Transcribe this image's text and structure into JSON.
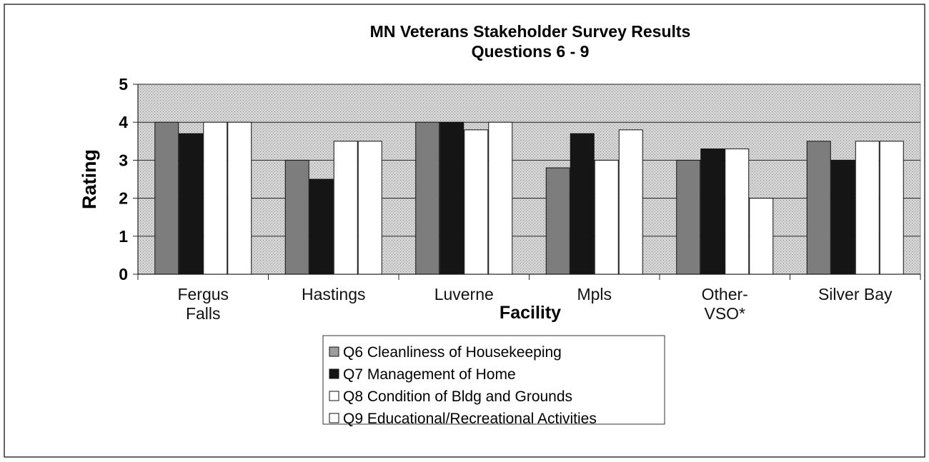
{
  "chart_data": {
    "type": "bar",
    "title": "MN Veterans Stakeholder Survey Results",
    "subtitle": "Questions 6 - 9",
    "x_label": "Facility",
    "y_label": "Rating",
    "categories": [
      "Fergus Falls",
      "Hastings",
      "Luverne",
      "Mpls",
      "Other-VSO*",
      "Silver Bay"
    ],
    "series": [
      {
        "name": "Q6 Cleanliness of Housekeeping",
        "color": "#7d7d7d",
        "values": [
          4.0,
          3.0,
          4.0,
          2.8,
          3.0,
          3.5
        ]
      },
      {
        "name": "Q7 Management of Home",
        "color": "#151515",
        "values": [
          3.7,
          2.5,
          4.0,
          3.7,
          3.3,
          3.0
        ]
      },
      {
        "name": "Q8 Condition of Bldg and Grounds",
        "color": "#ffffff",
        "values": [
          4.0,
          3.5,
          3.8,
          3.0,
          3.3,
          3.5
        ]
      },
      {
        "name": "Q9 Educational/Recreational Activities",
        "color": "#ffffff",
        "values": [
          4.0,
          3.5,
          4.0,
          3.8,
          2.0,
          3.5
        ]
      }
    ],
    "ylim": [
      0,
      5
    ],
    "yticks": [
      0,
      1,
      2,
      3,
      4,
      5
    ],
    "grid": true,
    "legend": "bottom"
  }
}
